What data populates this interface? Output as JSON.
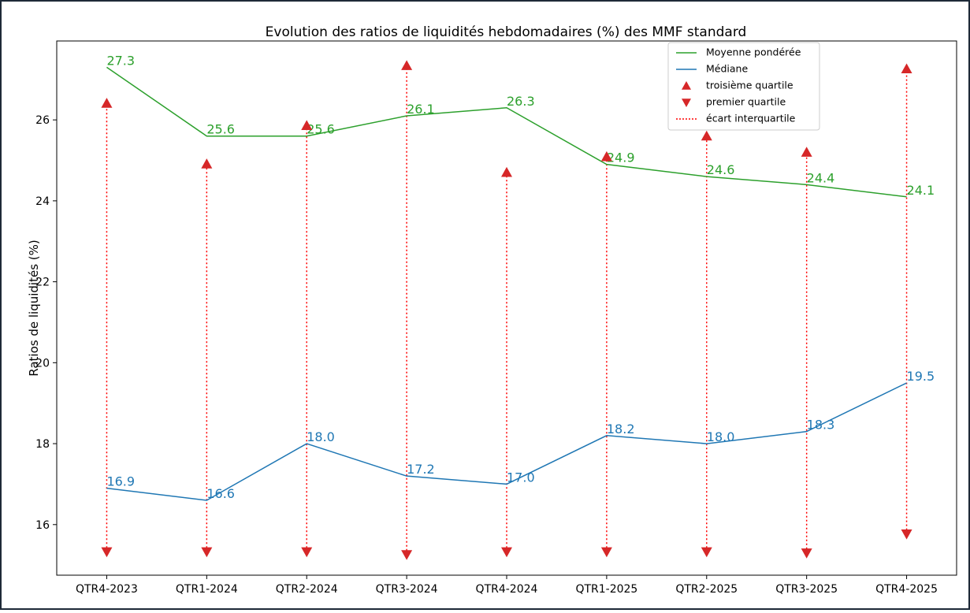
{
  "chart_data": {
    "type": "line",
    "title": "Evolution des ratios de liquidités hebdomadaires (%) des MMF standard",
    "y_label": "Ratios de liquidités (%)",
    "categories": [
      "QTR4-2023",
      "QTR1-2024",
      "QTR2-2024",
      "QTR3-2024",
      "QTR4-2024",
      "QTR1-2025",
      "QTR2-2025",
      "QTR3-2025",
      "QTR4-2025"
    ],
    "series": [
      {
        "name": "Moyenne pondérée",
        "color": "#2ca02c",
        "style": "line",
        "values": [
          27.3,
          25.6,
          25.6,
          26.1,
          26.3,
          24.9,
          24.6,
          24.4,
          24.1
        ],
        "value_labels": [
          "27.3",
          "25.6",
          "25.6",
          "26.1",
          "26.3",
          "24.9",
          "24.6",
          "24.4",
          "24.1"
        ]
      },
      {
        "name": "Médiane",
        "color": "#1f77b4",
        "style": "line",
        "values": [
          16.9,
          16.6,
          18.0,
          17.2,
          17.0,
          18.2,
          18.0,
          18.3,
          19.5
        ],
        "value_labels": [
          "16.9",
          "16.6",
          "18.0",
          "17.2",
          "17.0",
          "18.2",
          "18.0",
          "18.3",
          "19.5"
        ]
      },
      {
        "name": "troisième quartile",
        "color": "#d62728",
        "style": "triangle-up",
        "values": [
          26.41,
          24.91,
          25.86,
          27.34,
          24.7,
          25.09,
          25.6,
          25.2,
          27.26
        ]
      },
      {
        "name": "premier quartile",
        "color": "#d62728",
        "style": "triangle-down",
        "values": [
          15.33,
          15.33,
          15.33,
          15.26,
          15.33,
          15.33,
          15.33,
          15.3,
          15.77
        ]
      }
    ],
    "interquartile": {
      "name": "écart interquartile",
      "color": "#ff0000",
      "from": 3,
      "to": 2
    },
    "ylim": [
      14.75,
      27.95
    ],
    "yticks": [
      16,
      18,
      20,
      22,
      24,
      26
    ],
    "legend": "upper right"
  }
}
